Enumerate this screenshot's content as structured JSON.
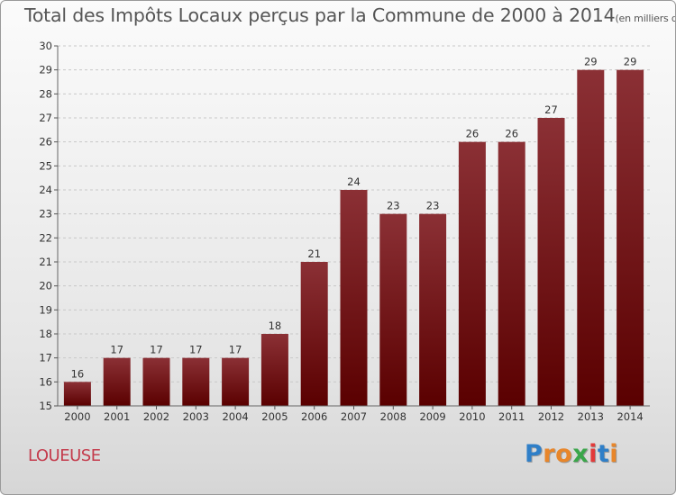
{
  "header": {
    "title": "Total des Impôts Locaux perçus par la Commune de 2000 à 2014",
    "unit": "(en milliers d'€)"
  },
  "footer": {
    "commune": "LOUEUSE",
    "brand_letters": [
      "P",
      "r",
      "o",
      "x",
      "i",
      "t",
      "i"
    ],
    "brand_colors": [
      "#2f7fc8",
      "#e8862a",
      "#e8862a",
      "#3aa64a",
      "#e23a3a",
      "#2f7fc8",
      "#e8862a"
    ]
  },
  "chart_data": {
    "type": "bar",
    "categories": [
      "2000",
      "2001",
      "2002",
      "2003",
      "2004",
      "2005",
      "2006",
      "2007",
      "2008",
      "2009",
      "2010",
      "2011",
      "2012",
      "2013",
      "2014"
    ],
    "values": [
      16,
      17,
      17,
      17,
      17,
      18,
      21,
      24,
      23,
      23,
      26,
      26,
      27,
      29,
      29
    ],
    "data_labels": [
      "16",
      "17",
      "17",
      "17",
      "17",
      "18",
      "21",
      "24",
      "23",
      "23",
      "26",
      "26",
      "27",
      "29",
      "29"
    ],
    "ylim": [
      15,
      30
    ],
    "yticks": [
      "15",
      "16",
      "17",
      "18",
      "19",
      "20",
      "21",
      "22",
      "23",
      "24",
      "25",
      "26",
      "27",
      "28",
      "29",
      "30"
    ],
    "grid": true,
    "bar_color_top": "#8b3035",
    "bar_color_bottom": "#5a0000"
  }
}
